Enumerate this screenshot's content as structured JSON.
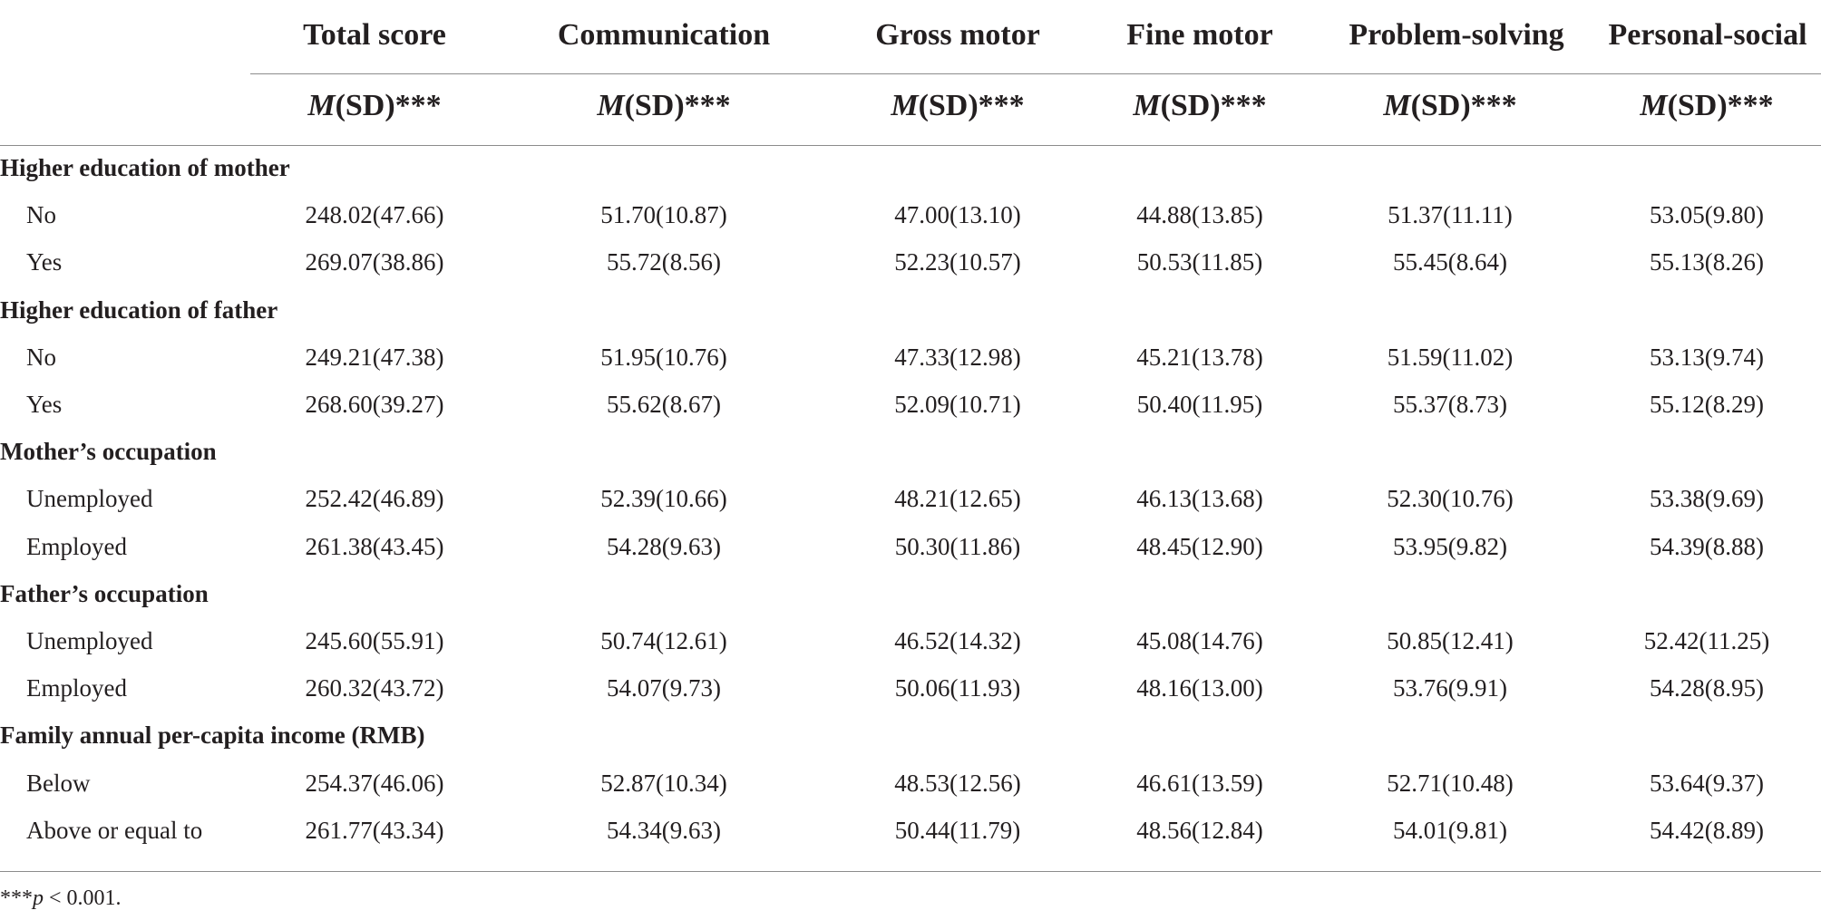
{
  "table": {
    "columns": [
      "Total score",
      "Communication",
      "Gross motor",
      "Fine motor",
      "Problem-solving",
      "Personal-social"
    ],
    "subheader": {
      "stat_m": "M",
      "stat_rest": "(SD)***"
    },
    "sections": [
      {
        "title": "Higher education of mother",
        "rows": [
          {
            "label": "No",
            "cells": [
              "248.02(47.66)",
              "51.70(10.87)",
              "47.00(13.10)",
              "44.88(13.85)",
              "51.37(11.11)",
              "53.05(9.80)"
            ]
          },
          {
            "label": "Yes",
            "cells": [
              "269.07(38.86)",
              "55.72(8.56)",
              "52.23(10.57)",
              "50.53(11.85)",
              "55.45(8.64)",
              "55.13(8.26)"
            ]
          }
        ]
      },
      {
        "title": "Higher education of father",
        "rows": [
          {
            "label": "No",
            "cells": [
              "249.21(47.38)",
              "51.95(10.76)",
              "47.33(12.98)",
              "45.21(13.78)",
              "51.59(11.02)",
              "53.13(9.74)"
            ]
          },
          {
            "label": "Yes",
            "cells": [
              "268.60(39.27)",
              "55.62(8.67)",
              "52.09(10.71)",
              "50.40(11.95)",
              "55.37(8.73)",
              "55.12(8.29)"
            ]
          }
        ]
      },
      {
        "title": "Mother’s occupation",
        "rows": [
          {
            "label": "Unemployed",
            "cells": [
              "252.42(46.89)",
              "52.39(10.66)",
              "48.21(12.65)",
              "46.13(13.68)",
              "52.30(10.76)",
              "53.38(9.69)"
            ]
          },
          {
            "label": "Employed",
            "cells": [
              "261.38(43.45)",
              "54.28(9.63)",
              "50.30(11.86)",
              "48.45(12.90)",
              "53.95(9.82)",
              "54.39(8.88)"
            ]
          }
        ]
      },
      {
        "title": "Father’s occupation",
        "rows": [
          {
            "label": "Unemployed",
            "cells": [
              "245.60(55.91)",
              "50.74(12.61)",
              "46.52(14.32)",
              "45.08(14.76)",
              "50.85(12.41)",
              "52.42(11.25)"
            ]
          },
          {
            "label": "Employed",
            "cells": [
              "260.32(43.72)",
              "54.07(9.73)",
              "50.06(11.93)",
              "48.16(13.00)",
              "53.76(9.91)",
              "54.28(8.95)"
            ]
          }
        ]
      },
      {
        "title": "Family annual per-capita income (RMB)",
        "rows": [
          {
            "label": "Below",
            "cells": [
              "254.37(46.06)",
              "52.87(10.34)",
              "48.53(12.56)",
              "46.61(13.59)",
              "52.71(10.48)",
              "53.64(9.37)"
            ]
          },
          {
            "label": "Above or equal to",
            "cells": [
              "261.77(43.34)",
              "54.34(9.63)",
              "50.44(11.79)",
              "48.56(12.84)",
              "54.01(9.81)",
              "54.42(8.89)"
            ]
          }
        ]
      }
    ],
    "footnote": {
      "stars": "***",
      "p": "p",
      "rest": " < 0.001."
    }
  }
}
